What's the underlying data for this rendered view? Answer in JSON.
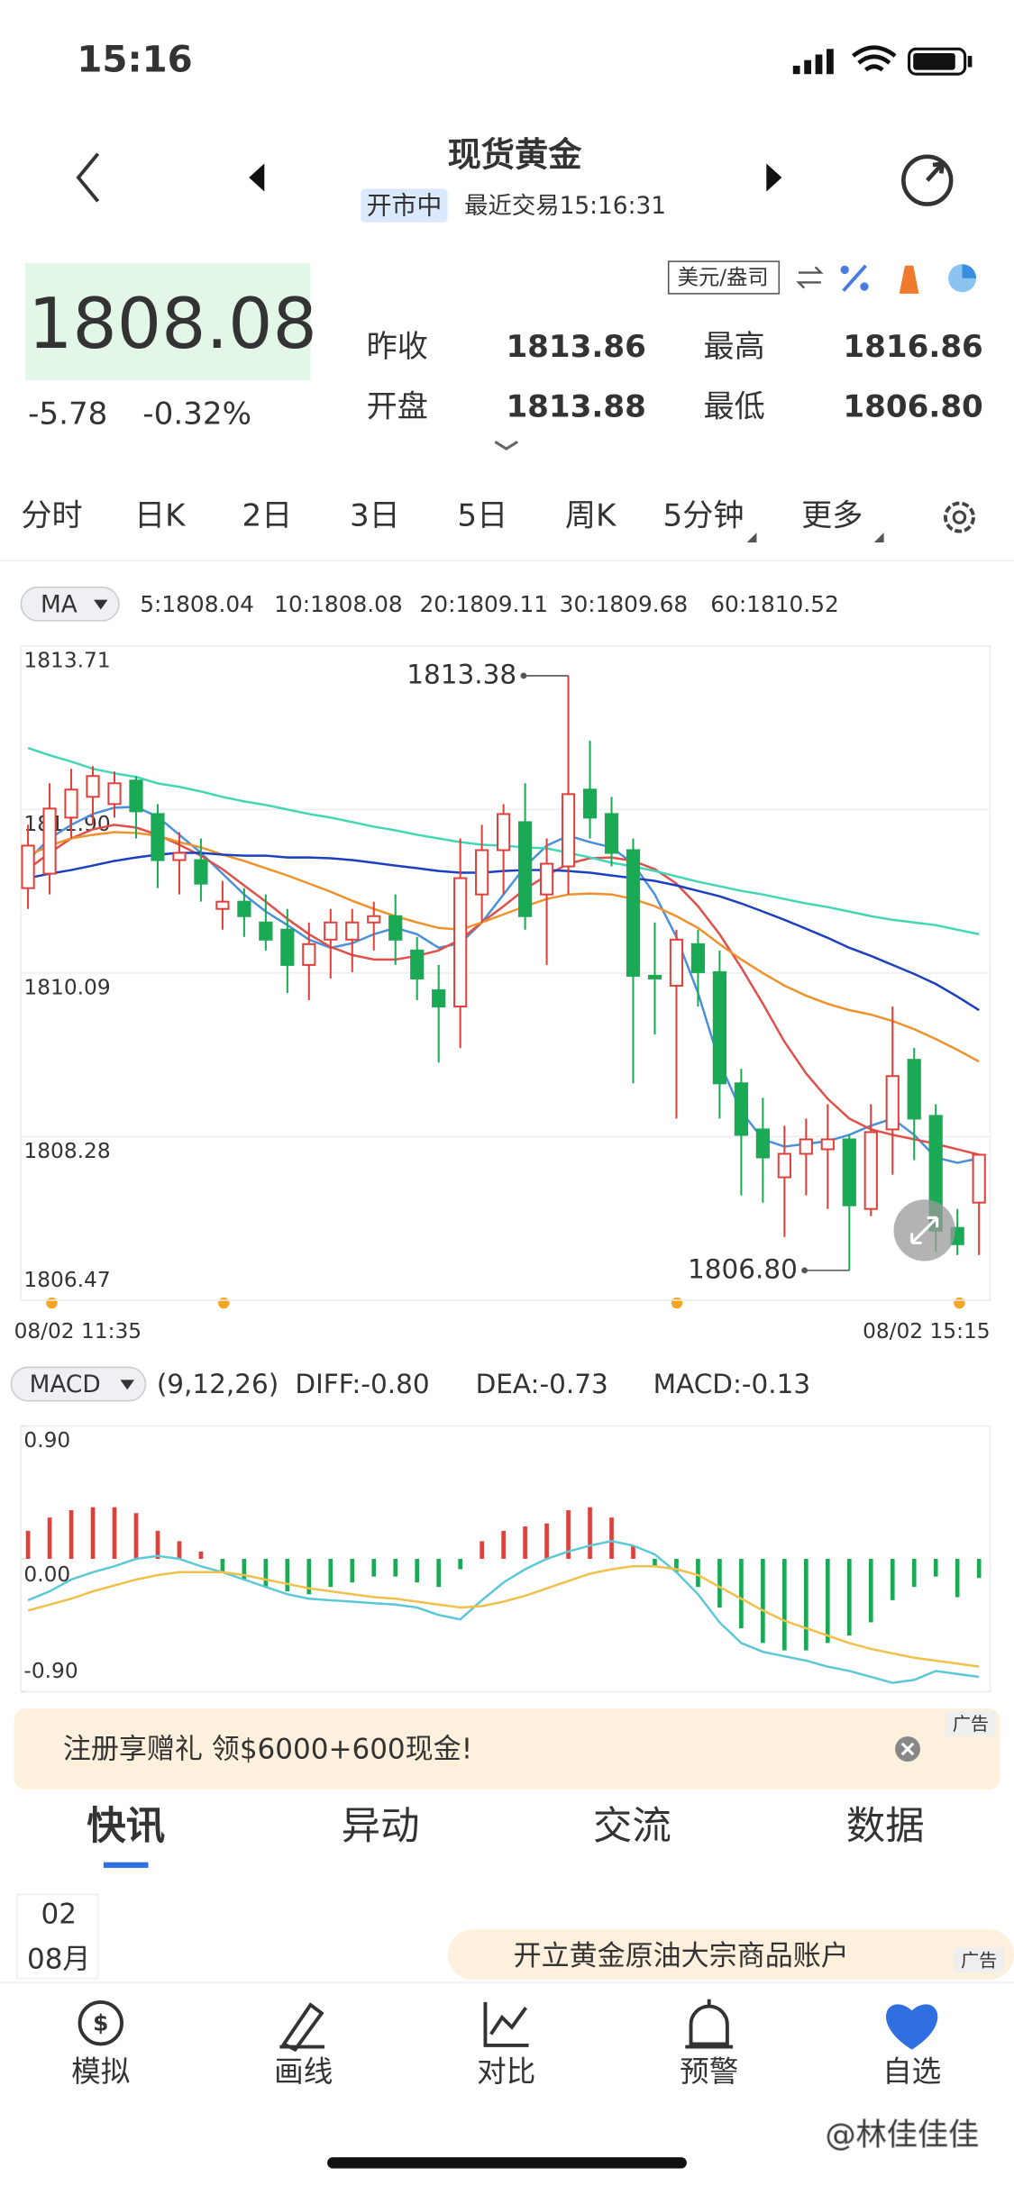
{
  "status_bar": {
    "time": "15:16"
  },
  "header": {
    "title": "现货黄金",
    "status": "开市中",
    "last_trade": "最近交易15:16:31"
  },
  "quote": {
    "price": "1808.08",
    "change": "-5.78",
    "change_pct": "-0.32%",
    "unit": "美元/盎司",
    "stats": [
      {
        "label": "昨收",
        "value": "1813.86"
      },
      {
        "label": "最高",
        "value": "1816.86"
      },
      {
        "label": "开盘",
        "value": "1813.88"
      },
      {
        "label": "最低",
        "value": "1806.80"
      }
    ]
  },
  "period_tabs": [
    {
      "label": "分时"
    },
    {
      "label": "日K"
    },
    {
      "label": "2日"
    },
    {
      "label": "3日"
    },
    {
      "label": "5日"
    },
    {
      "label": "周K"
    },
    {
      "label": "5分钟",
      "selected": true
    },
    {
      "label": "更多"
    }
  ],
  "chart_data": [
    {
      "type": "candlestick",
      "indicator": "MA",
      "x_labels": [
        "08/02 11:35",
        "08/02 15:15"
      ],
      "ylim": [
        1806.47,
        1813.71
      ],
      "yticks": [
        1806.47,
        1808.28,
        1810.09,
        {
          "value": 1811.9,
          "label": "1811.90"
        },
        1813.71
      ],
      "grid": true,
      "colors": {
        "up": "#e0403a",
        "down": "#1aaa55"
      },
      "open": [
        1811.03,
        1811.19,
        1811.81,
        1812.04,
        1811.96,
        1812.22,
        1811.85,
        1811.34,
        1811.34,
        1810.8,
        1810.88,
        1810.65,
        1810.57,
        1810.18,
        1810.46,
        1810.46,
        1810.65,
        1810.72,
        1810.34,
        1809.9,
        1809.72,
        1810.96,
        1811.45,
        1811.76,
        1810.96,
        1811.27,
        1812.12,
        1811.85,
        1811.45,
        1810.06,
        1809.95,
        1810.41,
        1810.1,
        1808.87,
        1808.36,
        1807.83,
        1808.09,
        1808.14,
        1808.25,
        1807.48,
        1808.36,
        1809.13,
        1808.51,
        1807.27,
        1807.55
      ],
      "high": [
        1811.73,
        1812.19,
        1812.35,
        1812.38,
        1812.32,
        1812.27,
        1811.96,
        1811.65,
        1811.58,
        1811.11,
        1811.03,
        1810.96,
        1810.8,
        1810.65,
        1810.8,
        1810.8,
        1810.88,
        1810.96,
        1810.49,
        1810.18,
        1811.58,
        1811.73,
        1811.96,
        1812.19,
        1811.58,
        1813.38,
        1812.66,
        1812.04,
        1811.58,
        1810.65,
        1810.57,
        1810.57,
        1810.34,
        1809.03,
        1808.71,
        1808.4,
        1808.48,
        1808.64,
        1808.3,
        1808.64,
        1809.72,
        1809.26,
        1808.64,
        1807.48,
        1808.09
      ],
      "low": [
        1810.8,
        1810.96,
        1811.58,
        1811.73,
        1811.81,
        1811.58,
        1811.03,
        1810.96,
        1810.88,
        1810.57,
        1810.49,
        1810.34,
        1809.87,
        1809.79,
        1810.03,
        1810.1,
        1810.34,
        1810.18,
        1809.79,
        1809.1,
        1809.26,
        1810.65,
        1810.96,
        1810.57,
        1810.18,
        1810.96,
        1811.58,
        1811.27,
        1808.87,
        1809.41,
        1808.48,
        1809.72,
        1808.48,
        1807.63,
        1807.55,
        1807.17,
        1807.63,
        1807.48,
        1806.8,
        1807.4,
        1807.86,
        1808.02,
        1807.01,
        1806.97,
        1806.97
      ],
      "close": [
        1811.5,
        1811.91,
        1812.12,
        1812.27,
        1812.19,
        1811.88,
        1811.34,
        1811.42,
        1811.08,
        1810.88,
        1810.72,
        1810.46,
        1810.18,
        1810.41,
        1810.65,
        1810.65,
        1810.72,
        1810.46,
        1810.03,
        1809.72,
        1811.14,
        1811.45,
        1811.85,
        1810.72,
        1811.3,
        1812.07,
        1811.81,
        1811.42,
        1810.06,
        1810.03,
        1810.46,
        1810.1,
        1808.87,
        1808.3,
        1808.05,
        1808.09,
        1808.25,
        1808.25,
        1807.52,
        1808.33,
        1808.95,
        1808.48,
        1807.24,
        1807.09,
        1808.08
      ],
      "annotations": [
        {
          "point": "high",
          "index": 25,
          "label": "1813.38"
        },
        {
          "point": "low",
          "index": 38,
          "label": "1806.80"
        }
      ],
      "series": [
        {
          "name": "5:1808.04",
          "color": "#4a90d9",
          "values": [
            1811.34,
            1811.58,
            1811.73,
            1811.85,
            1811.92,
            1811.93,
            1811.82,
            1811.62,
            1811.42,
            1811.19,
            1810.96,
            1810.77,
            1810.62,
            1810.46,
            1810.37,
            1810.42,
            1810.52,
            1810.59,
            1810.52,
            1810.37,
            1810.42,
            1810.65,
            1810.96,
            1811.27,
            1811.5,
            1811.61,
            1811.54,
            1811.48,
            1811.3,
            1810.96,
            1810.49,
            1809.87,
            1809.1,
            1808.56,
            1808.25,
            1808.17,
            1808.2,
            1808.23,
            1808.3,
            1808.4,
            1808.48,
            1808.3,
            1808.05,
            1807.99,
            1808.04
          ]
        },
        {
          "name": "10:1808.08",
          "color": "#e0504a",
          "values": [
            1811.24,
            1811.42,
            1811.58,
            1811.68,
            1811.73,
            1811.7,
            1811.62,
            1811.51,
            1811.39,
            1811.24,
            1811.06,
            1810.88,
            1810.69,
            1810.52,
            1810.38,
            1810.29,
            1810.24,
            1810.24,
            1810.28,
            1810.34,
            1810.46,
            1810.65,
            1810.83,
            1811.02,
            1811.17,
            1811.3,
            1811.36,
            1811.37,
            1811.33,
            1811.24,
            1811.08,
            1810.83,
            1810.52,
            1810.15,
            1809.75,
            1809.33,
            1808.98,
            1808.7,
            1808.48,
            1808.36,
            1808.3,
            1808.25,
            1808.2,
            1808.14,
            1808.08
          ]
        },
        {
          "name": "20:1809.11",
          "color": "#f0922b",
          "values": [
            1811.39,
            1811.5,
            1811.58,
            1811.62,
            1811.65,
            1811.64,
            1811.61,
            1811.54,
            1811.48,
            1811.4,
            1811.33,
            1811.25,
            1811.17,
            1811.08,
            1810.99,
            1810.89,
            1810.8,
            1810.72,
            1810.65,
            1810.59,
            1810.57,
            1810.65,
            1810.74,
            1810.83,
            1810.91,
            1810.96,
            1810.97,
            1810.96,
            1810.91,
            1810.83,
            1810.72,
            1810.59,
            1810.41,
            1810.24,
            1810.09,
            1809.95,
            1809.84,
            1809.75,
            1809.68,
            1809.63,
            1809.56,
            1809.47,
            1809.36,
            1809.24,
            1809.11
          ]
        },
        {
          "name": "30:1809.68",
          "color": "#1a3fbf",
          "values": [
            1811.14,
            1811.19,
            1811.23,
            1811.28,
            1811.33,
            1811.37,
            1811.4,
            1811.42,
            1811.42,
            1811.4,
            1811.39,
            1811.39,
            1811.37,
            1811.37,
            1811.36,
            1811.34,
            1811.31,
            1811.28,
            1811.25,
            1811.22,
            1811.2,
            1811.2,
            1811.22,
            1811.23,
            1811.23,
            1811.22,
            1811.2,
            1811.17,
            1811.14,
            1811.11,
            1811.06,
            1811.0,
            1810.94,
            1810.86,
            1810.77,
            1810.68,
            1810.58,
            1810.48,
            1810.37,
            1810.28,
            1810.18,
            1810.08,
            1809.97,
            1809.83,
            1809.68
          ]
        },
        {
          "name": "60:1810.52",
          "color": "#43d6b5",
          "values": [
            1812.58,
            1812.5,
            1812.43,
            1812.35,
            1812.3,
            1812.26,
            1812.19,
            1812.15,
            1812.1,
            1812.04,
            1811.99,
            1811.95,
            1811.9,
            1811.85,
            1811.81,
            1811.76,
            1811.71,
            1811.67,
            1811.62,
            1811.58,
            1811.54,
            1811.51,
            1811.5,
            1811.48,
            1811.47,
            1811.42,
            1811.37,
            1811.31,
            1811.27,
            1811.22,
            1811.16,
            1811.1,
            1811.05,
            1811.0,
            1810.96,
            1810.91,
            1810.86,
            1810.82,
            1810.77,
            1810.72,
            1810.68,
            1810.65,
            1810.62,
            1810.57,
            1810.52
          ]
        }
      ]
    },
    {
      "type": "macd",
      "indicator": "MACD",
      "params": "(9,12,26)",
      "ylim": [
        -0.9,
        0.9
      ],
      "yticks": [
        {
          "value": -0.9,
          "label": "-0.90"
        },
        {
          "value": 0,
          "label": "0.00"
        },
        {
          "value": 0.9,
          "label": "0.90"
        }
      ],
      "colors": {
        "up": "#e0403a",
        "down": "#1aaa55"
      },
      "histogram": {
        "name": "MACD:-0.13",
        "color": "#e0504a",
        "values": [
          0.19,
          0.28,
          0.33,
          0.35,
          0.35,
          0.31,
          0.19,
          0.12,
          0.05,
          -0.09,
          -0.14,
          -0.19,
          -0.22,
          -0.24,
          -0.19,
          -0.16,
          -0.12,
          -0.12,
          -0.16,
          -0.19,
          -0.07,
          0.12,
          0.19,
          0.22,
          0.24,
          0.33,
          0.35,
          0.28,
          0.09,
          -0.05,
          -0.09,
          -0.19,
          -0.33,
          -0.47,
          -0.57,
          -0.62,
          -0.62,
          -0.57,
          -0.52,
          -0.43,
          -0.28,
          -0.19,
          -0.12,
          -0.26,
          -0.13
        ]
      },
      "series": [
        {
          "name": "DIFF:-0.80",
          "color": "#5bc8d8",
          "values": [
            -0.28,
            -0.22,
            -0.14,
            -0.09,
            -0.05,
            0,
            0.02,
            0,
            -0.05,
            -0.09,
            -0.14,
            -0.19,
            -0.24,
            -0.27,
            -0.28,
            -0.29,
            -0.3,
            -0.31,
            -0.33,
            -0.38,
            -0.41,
            -0.28,
            -0.16,
            -0.07,
            0,
            0.05,
            0.09,
            0.12,
            0.09,
            0.03,
            -0.09,
            -0.24,
            -0.43,
            -0.57,
            -0.63,
            -0.66,
            -0.69,
            -0.73,
            -0.76,
            -0.8,
            -0.84,
            -0.82,
            -0.76,
            -0.78,
            -0.8
          ]
        },
        {
          "name": "DEA:-0.73",
          "color": "#f0c04a",
          "values": [
            -0.35,
            -0.31,
            -0.27,
            -0.22,
            -0.18,
            -0.14,
            -0.11,
            -0.09,
            -0.09,
            -0.09,
            -0.11,
            -0.14,
            -0.17,
            -0.2,
            -0.22,
            -0.24,
            -0.26,
            -0.27,
            -0.29,
            -0.31,
            -0.33,
            -0.32,
            -0.29,
            -0.25,
            -0.2,
            -0.15,
            -0.1,
            -0.07,
            -0.05,
            -0.05,
            -0.07,
            -0.11,
            -0.19,
            -0.27,
            -0.35,
            -0.42,
            -0.47,
            -0.52,
            -0.57,
            -0.61,
            -0.64,
            -0.67,
            -0.69,
            -0.71,
            -0.73
          ]
        }
      ]
    }
  ],
  "ad_banner": {
    "text": "注册享赠礼 领$6000+600现金!",
    "tag": "广告"
  },
  "news_tabs": [
    {
      "label": "快讯",
      "selected": true
    },
    {
      "label": "异动"
    },
    {
      "label": "交流"
    },
    {
      "label": "数据"
    }
  ],
  "news": {
    "day": "02",
    "month": "08月",
    "ad": "开立黄金原油大宗商品账户",
    "tag": "广告"
  },
  "nav": [
    {
      "label": "模拟"
    },
    {
      "label": "画线"
    },
    {
      "label": "对比"
    },
    {
      "label": "预警"
    },
    {
      "label": "自选"
    }
  ],
  "watermark": "@林佳佳佳"
}
